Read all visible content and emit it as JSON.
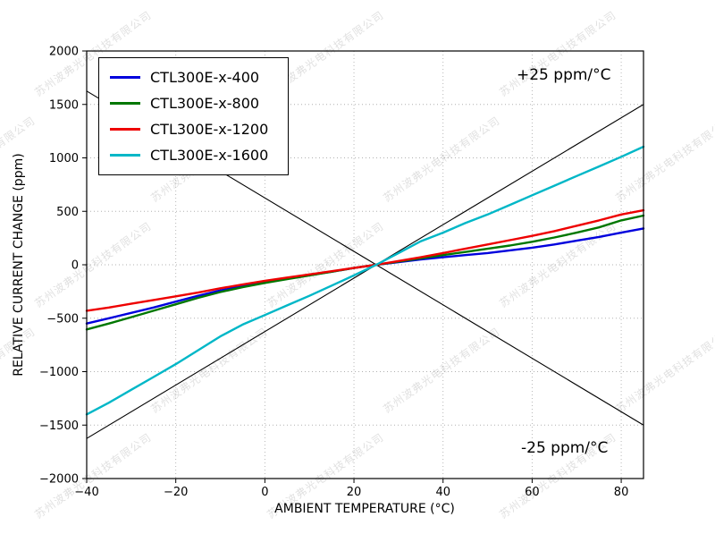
{
  "watermark": {
    "text": "苏州波弗光电科技有限公司"
  },
  "chart_data": {
    "type": "line",
    "title": "",
    "xlabel": "AMBIENT TEMPERATURE (°C)",
    "ylabel": "RELATIVE CURRENT CHANGE (ppm)",
    "xlim": [
      -40,
      85
    ],
    "ylim": [
      -2000,
      2000
    ],
    "xticks": [
      -40,
      -20,
      0,
      20,
      40,
      60,
      80
    ],
    "yticks": [
      -2000,
      -1500,
      -1000,
      -500,
      0,
      500,
      1000,
      1500,
      2000
    ],
    "grid": true,
    "legend_position": "upper-left",
    "annotations": [
      {
        "text": "+25 ppm/°C",
        "anchor": "upper-right"
      },
      {
        "text": "-25 ppm/°C",
        "anchor": "lower-right"
      }
    ],
    "reference_lines": [
      {
        "label": "+25 ppm/°C",
        "slope_ppm_per_C": 25,
        "through": [
          25,
          0
        ],
        "color": "#000000"
      },
      {
        "label": "-25 ppm/°C",
        "slope_ppm_per_C": -25,
        "through": [
          25,
          0
        ],
        "color": "#000000"
      }
    ],
    "x": [
      -40,
      -35,
      -30,
      -25,
      -20,
      -15,
      -10,
      -5,
      0,
      5,
      10,
      15,
      20,
      25,
      30,
      35,
      40,
      45,
      50,
      55,
      60,
      65,
      70,
      75,
      80,
      85
    ],
    "series": [
      {
        "name": "CTL300E-x-400",
        "color": "#0000dd",
        "values": [
          -550,
          -500,
          -450,
          -400,
          -345,
          -290,
          -240,
          -200,
          -160,
          -125,
          -95,
          -65,
          -30,
          0,
          25,
          50,
          70,
          90,
          110,
          135,
          160,
          190,
          225,
          260,
          300,
          340
        ]
      },
      {
        "name": "CTL300E-x-800",
        "color": "#007700",
        "values": [
          -605,
          -550,
          -490,
          -430,
          -370,
          -310,
          -255,
          -210,
          -170,
          -135,
          -100,
          -65,
          -30,
          0,
          30,
          60,
          90,
          120,
          150,
          180,
          215,
          255,
          300,
          350,
          415,
          460
        ]
      },
      {
        "name": "CTL300E-x-1200",
        "color": "#ee0000",
        "values": [
          -430,
          -400,
          -365,
          -330,
          -295,
          -260,
          -220,
          -185,
          -150,
          -120,
          -90,
          -60,
          -30,
          0,
          35,
          70,
          110,
          150,
          190,
          230,
          270,
          315,
          365,
          415,
          470,
          510
        ]
      },
      {
        "name": "CTL300E-x-1600",
        "color": "#00b7c7",
        "values": [
          -1400,
          -1290,
          -1170,
          -1050,
          -930,
          -800,
          -670,
          -560,
          -470,
          -380,
          -290,
          -195,
          -100,
          0,
          110,
          220,
          300,
          390,
          470,
          560,
          650,
          740,
          830,
          920,
          1010,
          1105
        ]
      }
    ]
  }
}
